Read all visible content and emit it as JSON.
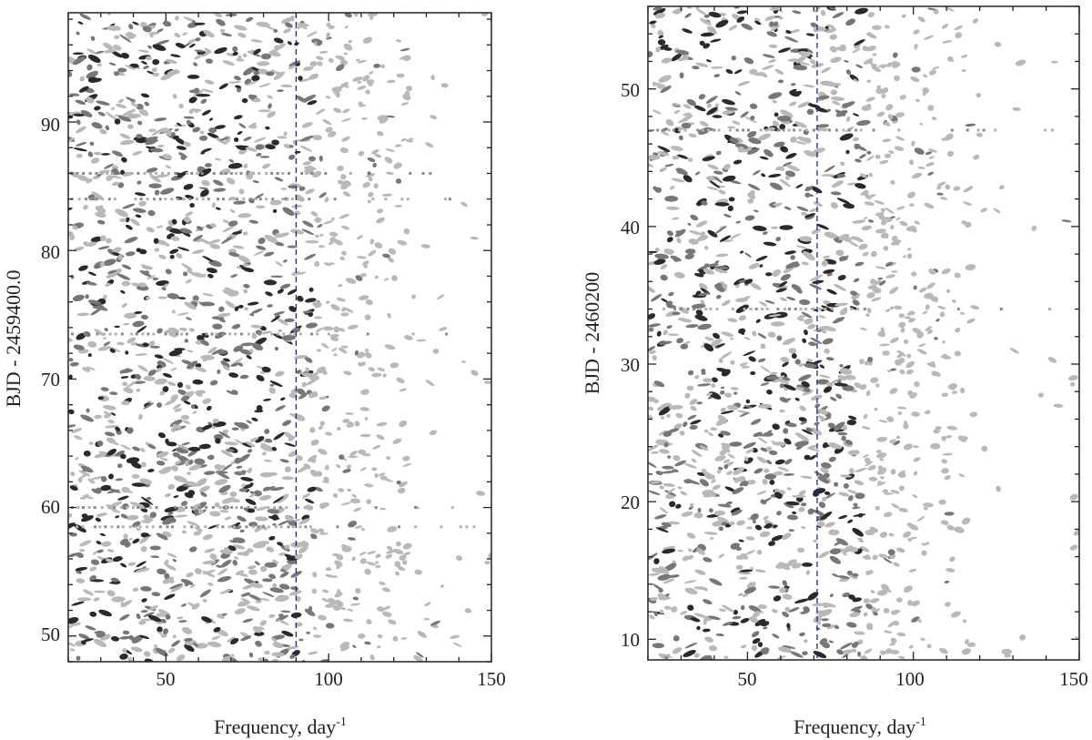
{
  "chart_data": [
    {
      "type": "heatmap",
      "xlabel": "Frequency, day",
      "xlabel_sup": "-1",
      "ylabel": "BJD - 2459400.0",
      "xlim": [
        20,
        150
      ],
      "ylim": [
        48,
        98.5
      ],
      "xticks": [
        50,
        100,
        150
      ],
      "yticks": [
        50,
        60,
        70,
        80,
        90
      ],
      "xminor_step": 10,
      "yminor_step": 2,
      "reference_line": {
        "x": 90,
        "color": "#1a2a8a",
        "style": "dashed"
      },
      "density_falloff_x": 95,
      "horizontal_streaks_y": [
        86,
        84,
        60,
        58.5,
        73.5
      ],
      "colors": {
        "dark": "#2a2a2a",
        "mid": "#777777",
        "light": "#b9b9b9"
      }
    },
    {
      "type": "heatmap",
      "xlabel": "Frequency, day",
      "xlabel_sup": "-1",
      "ylabel": "BJD - 2460200",
      "xlim": [
        20,
        150
      ],
      "ylim": [
        8.5,
        56
      ],
      "xticks": [
        50,
        100,
        150
      ],
      "yticks": [
        10,
        20,
        30,
        40,
        50
      ],
      "xminor_step": 10,
      "yminor_step": 2,
      "reference_line": {
        "x": 71,
        "color": "#1a2a8a",
        "style": "dashed"
      },
      "density_falloff_x": 85,
      "horizontal_streaks_y": [
        47,
        34
      ],
      "colors": {
        "dark": "#2a2a2a",
        "mid": "#777777",
        "light": "#b9b9b9"
      }
    }
  ]
}
